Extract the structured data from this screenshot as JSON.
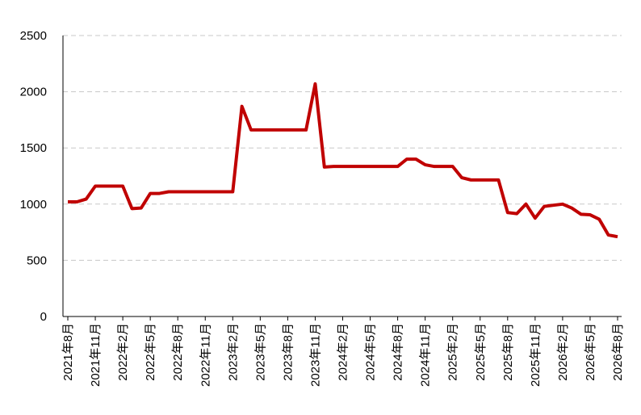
{
  "chart_data": {
    "type": "line",
    "categories": [
      "2021年8月",
      null,
      null,
      "2021年11月",
      null,
      null,
      "2022年2月",
      null,
      null,
      "2022年5月",
      null,
      null,
      "2022年8月",
      null,
      null,
      "2022年11月",
      null,
      null,
      "2023年2月",
      null,
      null,
      "2023年5月",
      null,
      null,
      "2023年8月",
      null,
      null,
      "2023年11月",
      null,
      null,
      "2024年2月",
      null,
      null,
      "2024年5月",
      null,
      null,
      "2024年8月",
      null,
      null,
      "2024年11月",
      null,
      null,
      "2025年2月",
      null,
      null,
      "2025年5月",
      null,
      null,
      "2025年8月",
      null,
      null,
      "2025年11月",
      null,
      null,
      "2026年2月",
      null,
      null,
      "2026年5月",
      null,
      null,
      "2026年8月"
    ],
    "values": [
      1020,
      1020,
      1045,
      1160,
      1160,
      1160,
      1160,
      960,
      965,
      1095,
      1095,
      1110,
      1110,
      1110,
      1110,
      1110,
      1110,
      1110,
      1110,
      1870,
      1660,
      1660,
      1660,
      1660,
      1660,
      1660,
      1660,
      2070,
      1330,
      1335,
      1335,
      1335,
      1335,
      1335,
      1335,
      1335,
      1335,
      1400,
      1400,
      1350,
      1335,
      1335,
      1335,
      1235,
      1215,
      1215,
      1215,
      1215,
      925,
      915,
      1000,
      875,
      980,
      990,
      1000,
      965,
      910,
      905,
      865,
      725,
      710
    ],
    "color": "#c00000",
    "ylim": [
      0,
      2500
    ],
    "yticks": [
      0,
      500,
      1000,
      1500,
      2000,
      2500
    ],
    "grid": true
  }
}
